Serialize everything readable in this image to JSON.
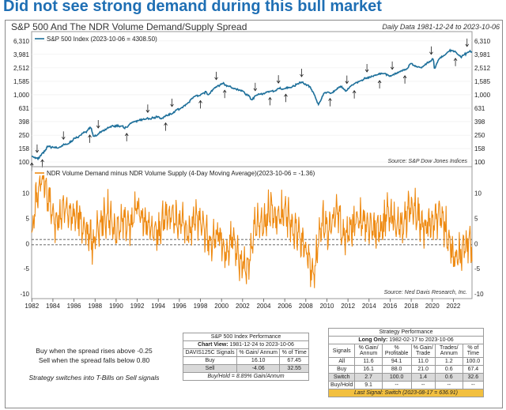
{
  "headline": "Did not see strong demand during this bull market",
  "chart_title": "S&P 500 And The NDR Volume Demand/Supply Spread",
  "date_range": "Daily Data 1981-12-24 to 2023-10-06",
  "chart_data": [
    {
      "type": "line",
      "name": "top-panel",
      "legend": "S&P 500 Index (2023-10-06 = 4308.50)",
      "scale": "log",
      "yticks": [
        "6,310",
        "3,981",
        "2,512",
        "1,585",
        "1,000",
        "631",
        "398",
        "250",
        "158",
        "100"
      ],
      "ylim": [
        100,
        7000
      ],
      "color": "#1d6f9a",
      "source": "Source:  S&P Dow Jones Indices",
      "series": [
        {
          "name": "S&P 500",
          "x": [
            1982.0,
            1982.6,
            1983.5,
            1984.5,
            1985.5,
            1986.5,
            1987.6,
            1987.85,
            1988.5,
            1989.5,
            1990.5,
            1990.8,
            1991.5,
            1992.5,
            1993.5,
            1994.5,
            1995.5,
            1996.5,
            1997.5,
            1998.5,
            1998.7,
            1999.5,
            2000.2,
            2000.8,
            2001.5,
            2002.0,
            2002.8,
            2003.5,
            2004.5,
            2005.5,
            2006.5,
            2007.8,
            2008.5,
            2009.2,
            2009.8,
            2010.5,
            2011.3,
            2011.8,
            2012.5,
            2013.5,
            2014.5,
            2015.5,
            2016.1,
            2016.8,
            2017.5,
            2018.0,
            2018.95,
            2019.5,
            2020.1,
            2020.2,
            2020.6,
            2021.0,
            2021.9,
            2022.5,
            2022.8,
            2023.5,
            2023.77
          ],
          "values": [
            120,
            110,
            165,
            160,
            190,
            240,
            320,
            230,
            270,
            330,
            350,
            310,
            380,
            420,
            460,
            450,
            560,
            680,
            930,
            1100,
            960,
            1350,
            1480,
            1300,
            1180,
            1150,
            850,
            980,
            1120,
            1210,
            1300,
            1530,
            1250,
            700,
            1080,
            1100,
            1340,
            1150,
            1400,
            1680,
            1950,
            2080,
            1880,
            2150,
            2420,
            2800,
            2450,
            2950,
            3350,
            2300,
            3300,
            3750,
            4750,
            3900,
            3600,
            4450,
            4308
          ]
        }
      ],
      "signal_years": [
        1982.0,
        1982.5,
        1983.0,
        1985.0,
        1987.5,
        1988.3,
        1991.0,
        1993.0,
        1994.7,
        1995.3,
        1998.0,
        1999.5,
        2000.3,
        2003.2,
        2004.6,
        2005.4,
        2006.1,
        2007.6,
        2010.3,
        2011.9,
        2012.6,
        2013.8,
        2015.0,
        2016.2,
        2017.4,
        2019.9,
        2022.2,
        2023.3
      ]
    },
    {
      "type": "line",
      "name": "bottom-panel",
      "legend": "NDR Volume Demand minus NDR Volume Supply (4-Day Moving Average)(2023-10-06 = -1.36)",
      "ylim": [
        -10,
        14
      ],
      "yticks": [
        "10",
        "5",
        "0",
        "-5",
        "-10"
      ],
      "reference_lines": [
        0.8,
        -0.25
      ],
      "color": "#ee8a12",
      "source": "Source:  Ned Davis Research, Inc.",
      "series": [
        {
          "name": "Spread",
          "x": [
            1982.0,
            1982.5,
            1983.0,
            1983.6,
            1984.3,
            1985.0,
            1985.7,
            1986.3,
            1987.0,
            1987.8,
            1988.5,
            1989.2,
            1990.0,
            1990.7,
            1991.3,
            1992.0,
            1992.7,
            1993.4,
            1994.1,
            1994.8,
            1995.5,
            1996.2,
            1996.9,
            1997.6,
            1998.3,
            1999.0,
            1999.7,
            2000.4,
            2001.1,
            2001.8,
            2002.5,
            2003.2,
            2003.9,
            2004.6,
            2005.3,
            2006.0,
            2006.7,
            2007.4,
            2008.1,
            2008.8,
            2009.5,
            2010.2,
            2010.9,
            2011.6,
            2012.3,
            2013.0,
            2013.7,
            2014.4,
            2015.1,
            2015.8,
            2016.5,
            2017.2,
            2017.9,
            2018.6,
            2019.3,
            2020.0,
            2020.7,
            2021.4,
            2022.1,
            2022.8,
            2023.5,
            2023.77
          ],
          "values": [
            2,
            10,
            13,
            9,
            4,
            7,
            5,
            6,
            3,
            0,
            4,
            6,
            2,
            5,
            3,
            8,
            4,
            2,
            3,
            6,
            5,
            4,
            2,
            6,
            3,
            0,
            2,
            -2,
            1,
            -4,
            -6,
            4,
            3,
            7,
            5,
            6,
            3,
            2,
            -2,
            -6,
            5,
            2,
            7,
            1,
            3,
            5,
            4,
            3,
            2,
            6,
            4,
            3,
            8,
            6,
            3,
            4,
            6,
            2,
            -3,
            -2,
            1,
            -1.36
          ]
        }
      ],
      "x_ticks": [
        "1982",
        "1984",
        "1986",
        "1988",
        "1990",
        "1992",
        "1994",
        "1996",
        "1998",
        "2000",
        "2002",
        "2004",
        "2006",
        "2008",
        "2010",
        "2012",
        "2014",
        "2016",
        "2018",
        "2020",
        "2022"
      ],
      "xlim": [
        1981.98,
        2023.77
      ]
    }
  ],
  "rules": {
    "buy_rule": "Buy when the spread rises above -0.25",
    "sell_rule": "Sell when the spread falls below 0.80",
    "note": "Strategy switches into T-Bills on Sell signals"
  },
  "index_performance": {
    "caption": "S&P 500 Index Performance",
    "chart_view_label": "Chart View:",
    "chart_view": "1981-12-24 to 2023-10-06",
    "headers": [
      "DAVIS125C Signals",
      "% Gain/ Annum",
      "% of Time"
    ],
    "rows": [
      [
        "Buy",
        "16.10",
        "67.45"
      ],
      [
        "Sell",
        "-4.06",
        "32.55"
      ]
    ],
    "footer": "Buy/Hold = 8.89% Gain/Annum"
  },
  "strategy_performance": {
    "caption": "Strategy Performance",
    "long_only_label": "Long Only:",
    "long_only": "1982-02-17 to 2023-10-06",
    "headers": [
      "Signals",
      "% Gain/ Annum",
      "% Profitable",
      "% Gain/ Trade",
      "Trades/ Annum",
      "% of Time"
    ],
    "rows": [
      [
        "All",
        "11.6",
        "94.1",
        "11.0",
        "1.2",
        "100.0"
      ],
      [
        "Buy",
        "16.1",
        "88.0",
        "21.0",
        "0.6",
        "67.4"
      ],
      [
        "Switch",
        "2.7",
        "100.0",
        "1.4",
        "0.6",
        "32.6"
      ],
      [
        "Buy/Hold",
        "9.1",
        "--",
        "--",
        "--",
        "--"
      ]
    ],
    "footer": "Last Signal: Switch (2023-08-17 = 636.91)"
  }
}
